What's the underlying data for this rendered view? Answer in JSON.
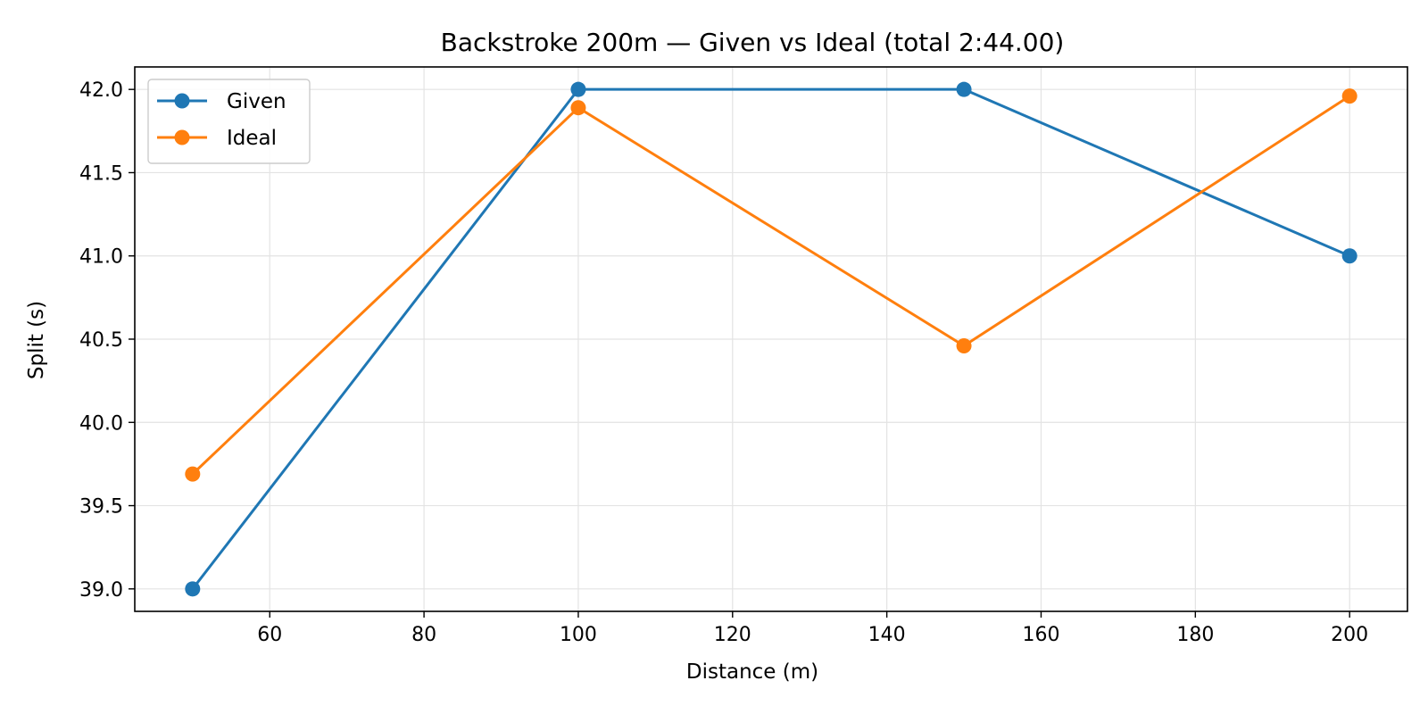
{
  "chart_data": {
    "type": "line",
    "title": "Backstroke 200m — Given vs Ideal (total 2:44.00)",
    "xlabel": "Distance (m)",
    "ylabel": "Split (s)",
    "x": [
      50,
      100,
      150,
      200
    ],
    "xlim": [
      42.5,
      207.5
    ],
    "ylim": [
      38.865,
      42.135
    ],
    "xticks": [
      60,
      80,
      100,
      120,
      140,
      160,
      180,
      200
    ],
    "yticks": [
      39.0,
      39.5,
      40.0,
      40.5,
      41.0,
      41.5,
      42.0
    ],
    "grid": true,
    "legend_position": "top-left",
    "series": [
      {
        "name": "Given",
        "color": "#1f77b4",
        "values": [
          39.0,
          42.0,
          42.0,
          41.0
        ]
      },
      {
        "name": "Ideal",
        "color": "#ff7f0e",
        "values": [
          39.69,
          41.89,
          40.46,
          41.96
        ]
      }
    ]
  }
}
